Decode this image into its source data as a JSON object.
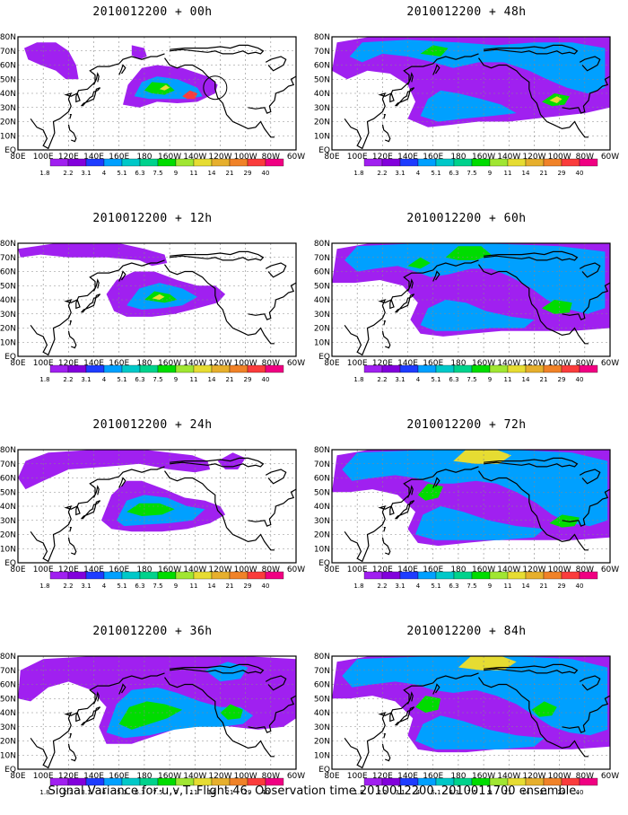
{
  "footer": "Signal Variance for u,v,T. Flight 46. Observation time 2010012200. 2010011700 ensemble.",
  "map_axes": {
    "lat_labels": [
      "80N",
      "70N",
      "60N",
      "50N",
      "40N",
      "30N",
      "20N",
      "10N",
      "EQ"
    ],
    "lon_labels": [
      "80E",
      "100E",
      "120E",
      "140E",
      "160E",
      "180",
      "160W",
      "140W",
      "120W",
      "100W",
      "80W",
      "60W"
    ]
  },
  "colorbar": {
    "labels": [
      "1.8",
      "2.2",
      "3.1",
      "4",
      "5.1",
      "6.3",
      "7.5",
      "9",
      "11",
      "14",
      "21",
      "29",
      "40"
    ],
    "colors": [
      "#a020f0",
      "#8200dc",
      "#1e3cff",
      "#00a0ff",
      "#00c8c8",
      "#00d28c",
      "#00dc00",
      "#a0e632",
      "#e6dc32",
      "#e6af2d",
      "#f08228",
      "#fa3c3c",
      "#f00082"
    ]
  },
  "panels": [
    {
      "title": "2010012200 + 00h",
      "lead_hours": 0
    },
    {
      "title": "2010012200 + 48h",
      "lead_hours": 48
    },
    {
      "title": "2010012200 + 12h",
      "lead_hours": 12
    },
    {
      "title": "2010012200 + 60h",
      "lead_hours": 60
    },
    {
      "title": "2010012200 + 24h",
      "lead_hours": 24
    },
    {
      "title": "2010012200 + 72h",
      "lead_hours": 72
    },
    {
      "title": "2010012200 + 36h",
      "lead_hours": 36
    },
    {
      "title": "2010012200 + 84h",
      "lead_hours": 84
    }
  ]
}
